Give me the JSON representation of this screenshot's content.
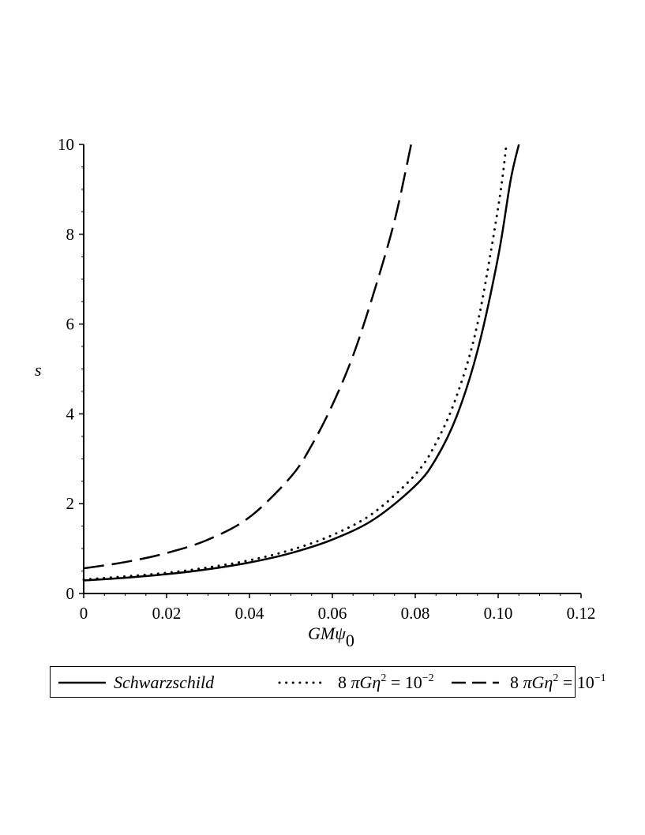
{
  "chart_data": {
    "type": "line",
    "xlabel": "GMψ0",
    "ylabel": "s",
    "xlim": [
      0,
      0.12
    ],
    "ylim": [
      0,
      10
    ],
    "x_ticks": [
      "0",
      "0.02",
      "0.04",
      "0.06",
      "0.08",
      "0.10",
      "0.12"
    ],
    "y_ticks": [
      "0",
      "2",
      "4",
      "6",
      "8",
      "10"
    ],
    "grid": false,
    "legend_position": "bottom",
    "series": [
      {
        "name": "Schwarzschild",
        "style": "solid",
        "x": [
          0,
          0.01,
          0.02,
          0.03,
          0.04,
          0.05,
          0.06,
          0.07,
          0.08,
          0.085,
          0.09,
          0.095,
          0.1,
          0.103,
          0.105
        ],
        "y": [
          0.29,
          0.35,
          0.43,
          0.54,
          0.69,
          0.9,
          1.2,
          1.65,
          2.4,
          3.0,
          3.95,
          5.4,
          7.5,
          9.2,
          10.0
        ]
      },
      {
        "name": "8 πGη² = 10⁻²",
        "style": "dotted",
        "x": [
          0,
          0.01,
          0.02,
          0.03,
          0.04,
          0.05,
          0.06,
          0.07,
          0.08,
          0.085,
          0.09,
          0.095,
          0.1,
          0.102
        ],
        "y": [
          0.31,
          0.38,
          0.46,
          0.58,
          0.74,
          0.97,
          1.3,
          1.8,
          2.65,
          3.35,
          4.4,
          6.0,
          8.6,
          10.0
        ]
      },
      {
        "name": "8 πGη² = 10⁻¹",
        "style": "dashed",
        "x": [
          0,
          0.01,
          0.02,
          0.03,
          0.04,
          0.05,
          0.055,
          0.06,
          0.065,
          0.07,
          0.075,
          0.079
        ],
        "y": [
          0.56,
          0.7,
          0.9,
          1.2,
          1.7,
          2.6,
          3.3,
          4.2,
          5.3,
          6.7,
          8.3,
          10.0
        ]
      }
    ]
  },
  "legend": {
    "items": [
      {
        "label": "Schwarzschild"
      },
      {
        "label_prefix": "8 ",
        "label_math": "πGη",
        "label_sup": "2",
        "label_rest": " = 10",
        "label_exp": "−2"
      },
      {
        "label_prefix": "8 ",
        "label_math": "πGη",
        "label_sup": "2",
        "label_rest": " = 10",
        "label_exp": "−1"
      }
    ]
  },
  "axis_titles": {
    "x_main": "GMψ",
    "x_sub": "0",
    "y": "s"
  },
  "colors": {
    "line": "#000000",
    "axis": "#000000",
    "background": "#ffffff"
  }
}
